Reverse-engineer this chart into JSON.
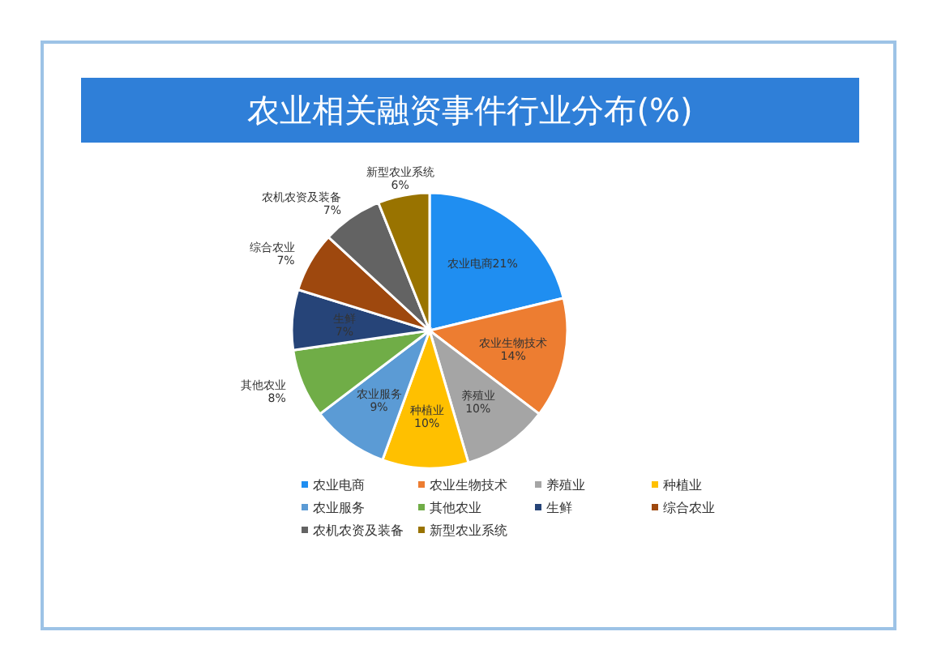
{
  "chart_data": {
    "type": "pie",
    "title": "农业相关融资事件行业分布(%)",
    "categories": [
      "农业电商",
      "农业生物技术",
      "养殖业",
      "种植业",
      "农业服务",
      "其他农业",
      "生鲜",
      "综合农业",
      "农机农资及装备",
      "新型农业系统"
    ],
    "values": [
      21,
      14,
      10,
      10,
      9,
      8,
      7,
      7,
      7,
      6
    ],
    "value_labels": [
      "21%",
      "14%",
      "10%",
      "10%",
      "9%",
      "8%",
      "7%",
      "7%",
      "7%",
      "6%"
    ],
    "colors": [
      "#1f8ef1",
      "#ed7d31",
      "#a5a5a5",
      "#ffc000",
      "#5b9bd5",
      "#70ad47",
      "#264478",
      "#9e480e",
      "#636363",
      "#997300"
    ],
    "legend": "bottom"
  }
}
